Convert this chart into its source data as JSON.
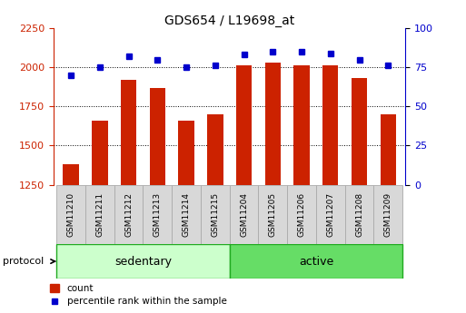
{
  "title": "GDS654 / L19698_at",
  "samples": [
    "GSM11210",
    "GSM11211",
    "GSM11212",
    "GSM11213",
    "GSM11214",
    "GSM11215",
    "GSM11204",
    "GSM11205",
    "GSM11206",
    "GSM11207",
    "GSM11208",
    "GSM11209"
  ],
  "counts": [
    1380,
    1660,
    1920,
    1870,
    1660,
    1700,
    2010,
    2030,
    2010,
    2010,
    1930,
    1700
  ],
  "percentiles": [
    70,
    75,
    82,
    80,
    75,
    76,
    83,
    85,
    85,
    84,
    80,
    76
  ],
  "groups": [
    {
      "label": "sedentary",
      "start": 0,
      "end": 6,
      "color": "#ccffcc"
    },
    {
      "label": "active",
      "start": 6,
      "end": 12,
      "color": "#66dd66"
    }
  ],
  "protocol_label": "protocol",
  "ylim_left": [
    1250,
    2250
  ],
  "ylim_right": [
    0,
    100
  ],
  "yticks_left": [
    1250,
    1500,
    1750,
    2000,
    2250
  ],
  "yticks_right": [
    0,
    25,
    50,
    75,
    100
  ],
  "bar_color": "#cc2200",
  "dot_color": "#0000cc",
  "grid_linestyle": "dotted",
  "bg_color": "#ffffff",
  "tick_label_color_left": "#cc2200",
  "tick_label_color_right": "#0000cc",
  "bar_width": 0.55,
  "figsize": [
    5.13,
    3.45
  ],
  "dpi": 100
}
